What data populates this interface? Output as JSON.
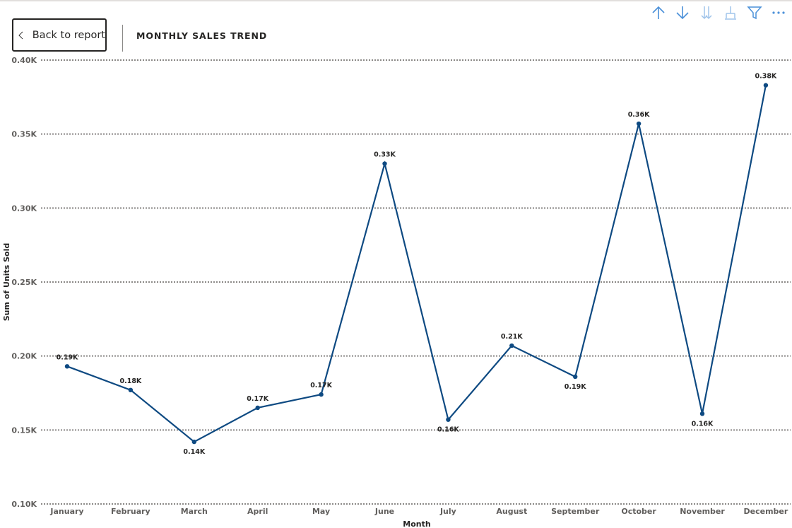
{
  "header": {
    "back_label": "Back to report",
    "title": "MONTHLY SALES TREND"
  },
  "toolbar": {
    "icons": [
      "arrow-up-icon",
      "arrow-down-icon",
      "double-arrow-down-icon",
      "expand-hierarchy-icon",
      "filter-icon",
      "more-options-icon"
    ]
  },
  "colors": {
    "series": "#0e4a82",
    "grid": "#8a8886",
    "icons": "#4a90d9"
  },
  "chart_data": {
    "type": "line",
    "title": "",
    "xlabel": "Month",
    "ylabel": "Sum of Units Sold",
    "categories": [
      "January",
      "February",
      "March",
      "April",
      "May",
      "June",
      "July",
      "August",
      "September",
      "October",
      "November",
      "December"
    ],
    "series": [
      {
        "values": [
          193,
          177,
          142,
          165,
          174,
          330,
          157,
          207,
          186,
          357,
          161,
          383
        ],
        "labels": [
          "0.19K",
          "0.18K",
          "0.14K",
          "0.17K",
          "0.17K",
          "0.33K",
          "0.16K",
          "0.21K",
          "0.19K",
          "0.36K",
          "0.16K",
          "0.38K"
        ]
      }
    ],
    "ylim": [
      100,
      400
    ],
    "yticks": [
      100,
      150,
      200,
      250,
      300,
      350,
      400
    ],
    "ytick_labels": [
      "0.10K",
      "0.15K",
      "0.20K",
      "0.25K",
      "0.30K",
      "0.35K",
      "0.40K"
    ],
    "grid": true,
    "legend": false
  }
}
